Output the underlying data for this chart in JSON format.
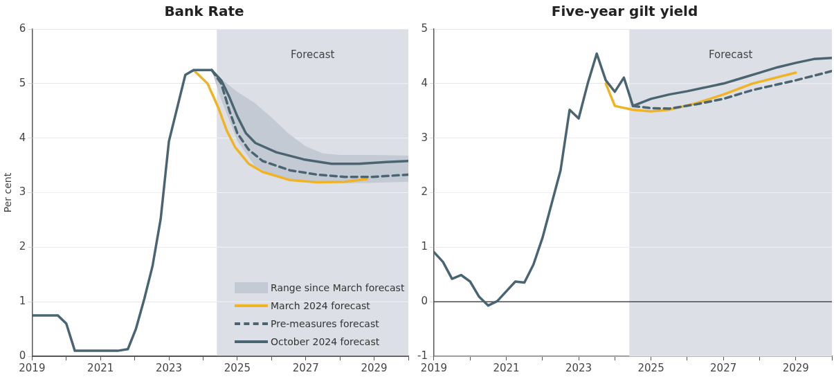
{
  "chart_data": [
    {
      "type": "line",
      "title": "Bank Rate",
      "ylabel": "Per cent",
      "xlim": [
        2019,
        2030
      ],
      "xticks": [
        2019,
        {
          "value": 2020,
          "label": null
        },
        2021,
        {
          "value": 2022,
          "label": null
        },
        2023,
        {
          "value": 2024,
          "label": null
        },
        2025,
        {
          "value": 2026,
          "label": null
        },
        2027,
        {
          "value": 2028,
          "label": null
        },
        2029,
        {
          "value": 2030,
          "label": null
        }
      ],
      "ylim": [
        0,
        6
      ],
      "yticks": [
        0,
        1,
        2,
        3,
        4,
        5,
        6
      ],
      "grid": "y",
      "legend": "bottom right",
      "marker": "none",
      "bands": [
        {
          "axis": "x",
          "from": 2024.4,
          "to": 2030,
          "label": "Forecast",
          "color": "#dcdfe5"
        }
      ],
      "series": [
        {
          "type": "area",
          "name": "Range since March forecast",
          "color": "#c3cad4",
          "x": [
            2024.25,
            2024.5,
            2025,
            2025.5,
            2026,
            2026.5,
            2027,
            2027.5,
            2028,
            2029,
            2030
          ],
          "values": [
            null,
            null,
            null,
            null,
            null,
            null,
            null,
            null,
            null,
            null,
            null
          ],
          "lower": [
            5.25,
            4.75,
            3.95,
            3.5,
            3.32,
            3.24,
            3.19,
            3.17,
            3.17,
            3.18,
            3.2
          ],
          "upper": [
            5.25,
            5.1,
            4.85,
            4.65,
            4.38,
            4.08,
            3.85,
            3.72,
            3.69,
            3.69,
            3.68
          ]
        },
        {
          "name": "March 2024 forecast",
          "color": "#f0b323",
          "line_style": "solid",
          "x": [
            2023.75,
            2024.13,
            2024.45,
            2024.69,
            2024.93,
            2025.33,
            2025.74,
            2026.54,
            2027.34,
            2028.15,
            2028.79
          ],
          "values": [
            5.23,
            5.0,
            4.55,
            4.14,
            3.84,
            3.53,
            3.38,
            3.23,
            3.19,
            3.2,
            3.25
          ]
        },
        {
          "name": "Pre-measures forecast",
          "color": "#4a6472",
          "line_style": "dashed",
          "x": [
            2024.25,
            2024.53,
            2024.77,
            2025.0,
            2025.33,
            2025.74,
            2026.54,
            2027.34,
            2028.15,
            2028.95,
            2030.0
          ],
          "values": [
            5.25,
            5.0,
            4.5,
            4.09,
            3.79,
            3.58,
            3.41,
            3.33,
            3.29,
            3.29,
            3.33
          ]
        },
        {
          "name": "October 2024 forecast",
          "color": "#4a6472",
          "line_style": "solid",
          "x": [
            2019,
            2019.25,
            2019.5,
            2019.75,
            2020.0,
            2020.25,
            2020.5,
            2020.75,
            2021.0,
            2021.25,
            2021.5,
            2021.8,
            2022.04,
            2022.28,
            2022.52,
            2022.76,
            2023.0,
            2023.24,
            2023.48,
            2023.73,
            2024.0,
            2024.25,
            2024.53,
            2024.77,
            2025.0,
            2025.25,
            2025.53,
            2026.14,
            2026.94,
            2027.75,
            2028.55,
            2029.35,
            2030.0
          ],
          "values": [
            0.75,
            0.75,
            0.75,
            0.75,
            0.6,
            0.1,
            0.1,
            0.1,
            0.1,
            0.1,
            0.1,
            0.13,
            0.51,
            1.05,
            1.65,
            2.52,
            3.94,
            4.55,
            5.16,
            5.25,
            5.25,
            5.25,
            5.06,
            4.75,
            4.4,
            4.09,
            3.91,
            3.74,
            3.61,
            3.53,
            3.53,
            3.56,
            3.58
          ]
        }
      ]
    },
    {
      "type": "line",
      "title": "Five-year gilt yield",
      "xlim": [
        2019,
        2030
      ],
      "xticks": [
        2019,
        {
          "value": 2020,
          "label": null
        },
        2021,
        {
          "value": 2022,
          "label": null
        },
        2023,
        {
          "value": 2024,
          "label": null
        },
        2025,
        {
          "value": 2026,
          "label": null
        },
        2027,
        {
          "value": 2028,
          "label": null
        },
        2029,
        {
          "value": 2030,
          "label": null
        }
      ],
      "ylim": [
        -1,
        5
      ],
      "yticks": [
        -1,
        0,
        1,
        2,
        3,
        4,
        5
      ],
      "grid": "y",
      "marker": "none",
      "bands": [
        {
          "axis": "x",
          "from": 2024.4,
          "to": 2030,
          "label": "Forecast",
          "color": "#dcdfe5"
        }
      ],
      "series": [
        {
          "color": "#f0b323",
          "line_style": "solid",
          "x": [
            2023.75,
            2024.0,
            2024.5,
            2025.0,
            2025.5,
            2026.25,
            2027.0,
            2027.8,
            2029.0
          ],
          "values": [
            4.0,
            3.59,
            3.52,
            3.49,
            3.52,
            3.64,
            3.8,
            4.0,
            4.2
          ]
        },
        {
          "color": "#4a6472",
          "line_style": "dashed",
          "x": [
            2024.5,
            2025.0,
            2025.5,
            2026.25,
            2027.0,
            2027.8,
            2029.0,
            2030.0
          ],
          "values": [
            3.59,
            3.55,
            3.54,
            3.62,
            3.72,
            3.88,
            4.06,
            4.23
          ]
        },
        {
          "color": "#4a6472",
          "line_style": "solid",
          "x": [
            2019.0,
            2019.25,
            2019.5,
            2019.75,
            2020.0,
            2020.25,
            2020.5,
            2020.75,
            2021.0,
            2021.25,
            2021.5,
            2021.75,
            2022.0,
            2022.25,
            2022.5,
            2022.75,
            2023.0,
            2023.25,
            2023.5,
            2023.75,
            2024.0,
            2024.25,
            2024.5,
            2025.0,
            2025.5,
            2026.0,
            2026.5,
            2027.0,
            2027.5,
            2028.0,
            2028.5,
            2029.0,
            2029.5,
            2030.0
          ],
          "values": [
            0.91,
            0.73,
            0.42,
            0.49,
            0.37,
            0.09,
            -0.07,
            0.01,
            0.19,
            0.37,
            0.35,
            0.68,
            1.17,
            1.79,
            2.41,
            3.52,
            3.36,
            4.0,
            4.55,
            4.06,
            3.85,
            4.11,
            3.59,
            3.72,
            3.8,
            3.86,
            3.93,
            4.0,
            4.1,
            4.2,
            4.3,
            4.38,
            4.45,
            4.47
          ]
        }
      ]
    }
  ]
}
